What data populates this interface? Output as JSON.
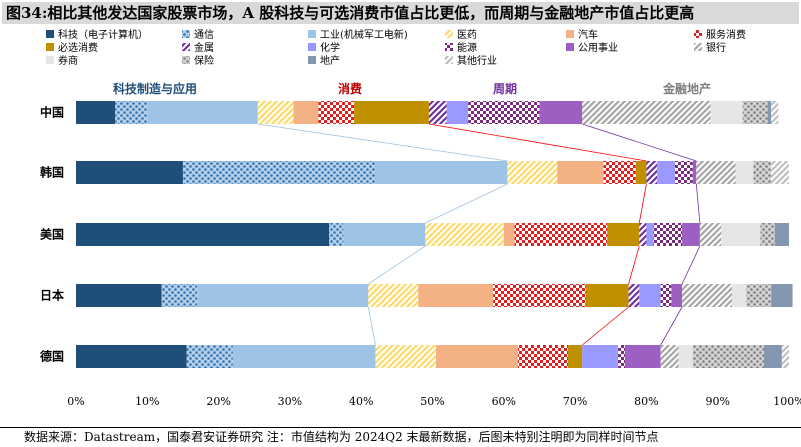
{
  "title": "图34:相比其他发达国家股票市场，A 股科技与可选消费市值占比更低，而周期与金融地产市值占比更高",
  "source": "数据来源：Datastream，国泰君安证券研究  注：市值结构为 2024Q2 末最新数据，后图未特别注明即为同样时间节点",
  "groups": [
    {
      "label": "科技制造与应用",
      "color": "#1f4e79"
    },
    {
      "label": "消费",
      "color": "#c00000"
    },
    {
      "label": "周期",
      "color": "#7030a0"
    },
    {
      "label": "金融地产",
      "color": "#7f7f7f"
    }
  ],
  "chart_data": {
    "type": "bar",
    "orientation": "horizontal",
    "stacked": true,
    "categories": [
      "中国",
      "韩国",
      "美国",
      "日本",
      "德国"
    ],
    "xlim": [
      0,
      100
    ],
    "x_ticks": [
      "0%",
      "10%",
      "20%",
      "30%",
      "40%",
      "50%",
      "60%",
      "70%",
      "80%",
      "90%",
      "100%"
    ],
    "series": [
      {
        "name": "科技（电子计算机）",
        "color": "#1f4e79",
        "pattern": "solid",
        "values": [
          5.5,
          15.0,
          35.5,
          12.0,
          15.5
        ]
      },
      {
        "name": "通信",
        "color": "#2e75b6",
        "pattern": "dots",
        "values": [
          4.5,
          27.0,
          2.0,
          5.0,
          6.5
        ]
      },
      {
        "name": "工业(机械军工电新)",
        "color": "#9dc3e6",
        "pattern": "solid",
        "values": [
          15.5,
          18.5,
          11.5,
          24.0,
          20.0
        ]
      },
      {
        "name": "医药",
        "color": "#ffd966",
        "pattern": "diag",
        "values": [
          5.0,
          7.0,
          11.0,
          7.0,
          8.5
        ]
      },
      {
        "name": "汽车",
        "color": "#f4b183",
        "pattern": "solid",
        "values": [
          3.5,
          6.5,
          1.5,
          10.5,
          11.5
        ]
      },
      {
        "name": "服务消费",
        "color": "#e02020",
        "pattern": "checker",
        "values": [
          5.0,
          4.5,
          13.0,
          13.0,
          7.0
        ]
      },
      {
        "name": "必选消费",
        "color": "#c09000",
        "pattern": "solid",
        "values": [
          10.5,
          1.5,
          4.5,
          6.0,
          2.0
        ]
      },
      {
        "name": "金属",
        "color": "#7030a0",
        "pattern": "diag",
        "values": [
          2.5,
          1.5,
          1.0,
          1.5,
          0.0
        ]
      },
      {
        "name": "化学",
        "color": "#9999ff",
        "pattern": "solid",
        "values": [
          3.0,
          2.5,
          1.0,
          3.0,
          5.0
        ]
      },
      {
        "name": "能源",
        "color": "#7b2c7e",
        "pattern": "checker",
        "values": [
          10.0,
          2.5,
          4.0,
          1.5,
          1.0
        ]
      },
      {
        "name": "公用事业",
        "color": "#9e5fc2",
        "pattern": "solid",
        "values": [
          6.0,
          0.5,
          2.5,
          1.5,
          5.0
        ]
      },
      {
        "name": "银行",
        "color": "#a6a6a6",
        "pattern": "diag",
        "values": [
          18.0,
          5.5,
          3.0,
          7.0,
          2.5
        ]
      },
      {
        "name": "券商",
        "color": "#e7e6e6",
        "pattern": "solid",
        "values": [
          4.5,
          2.5,
          5.5,
          2.0,
          2.0
        ]
      },
      {
        "name": "保险",
        "color": "#808080",
        "pattern": "dots",
        "values": [
          3.5,
          2.5,
          2.0,
          3.5,
          10.0
        ]
      },
      {
        "name": "地产",
        "color": "#8497b0",
        "pattern": "solid",
        "values": [
          0.5,
          0.0,
          2.0,
          3.0,
          2.5
        ]
      },
      {
        "name": "其他行业",
        "color": "#bfbfbf",
        "pattern": "diag",
        "values": [
          1.0,
          2.5,
          0.0,
          0.0,
          1.0
        ]
      }
    ],
    "group_of_series": [
      0,
      0,
      0,
      1,
      1,
      1,
      1,
      2,
      2,
      2,
      2,
      3,
      3,
      3,
      3,
      3
    ],
    "connector_series": [
      2,
      6,
      10
    ]
  }
}
